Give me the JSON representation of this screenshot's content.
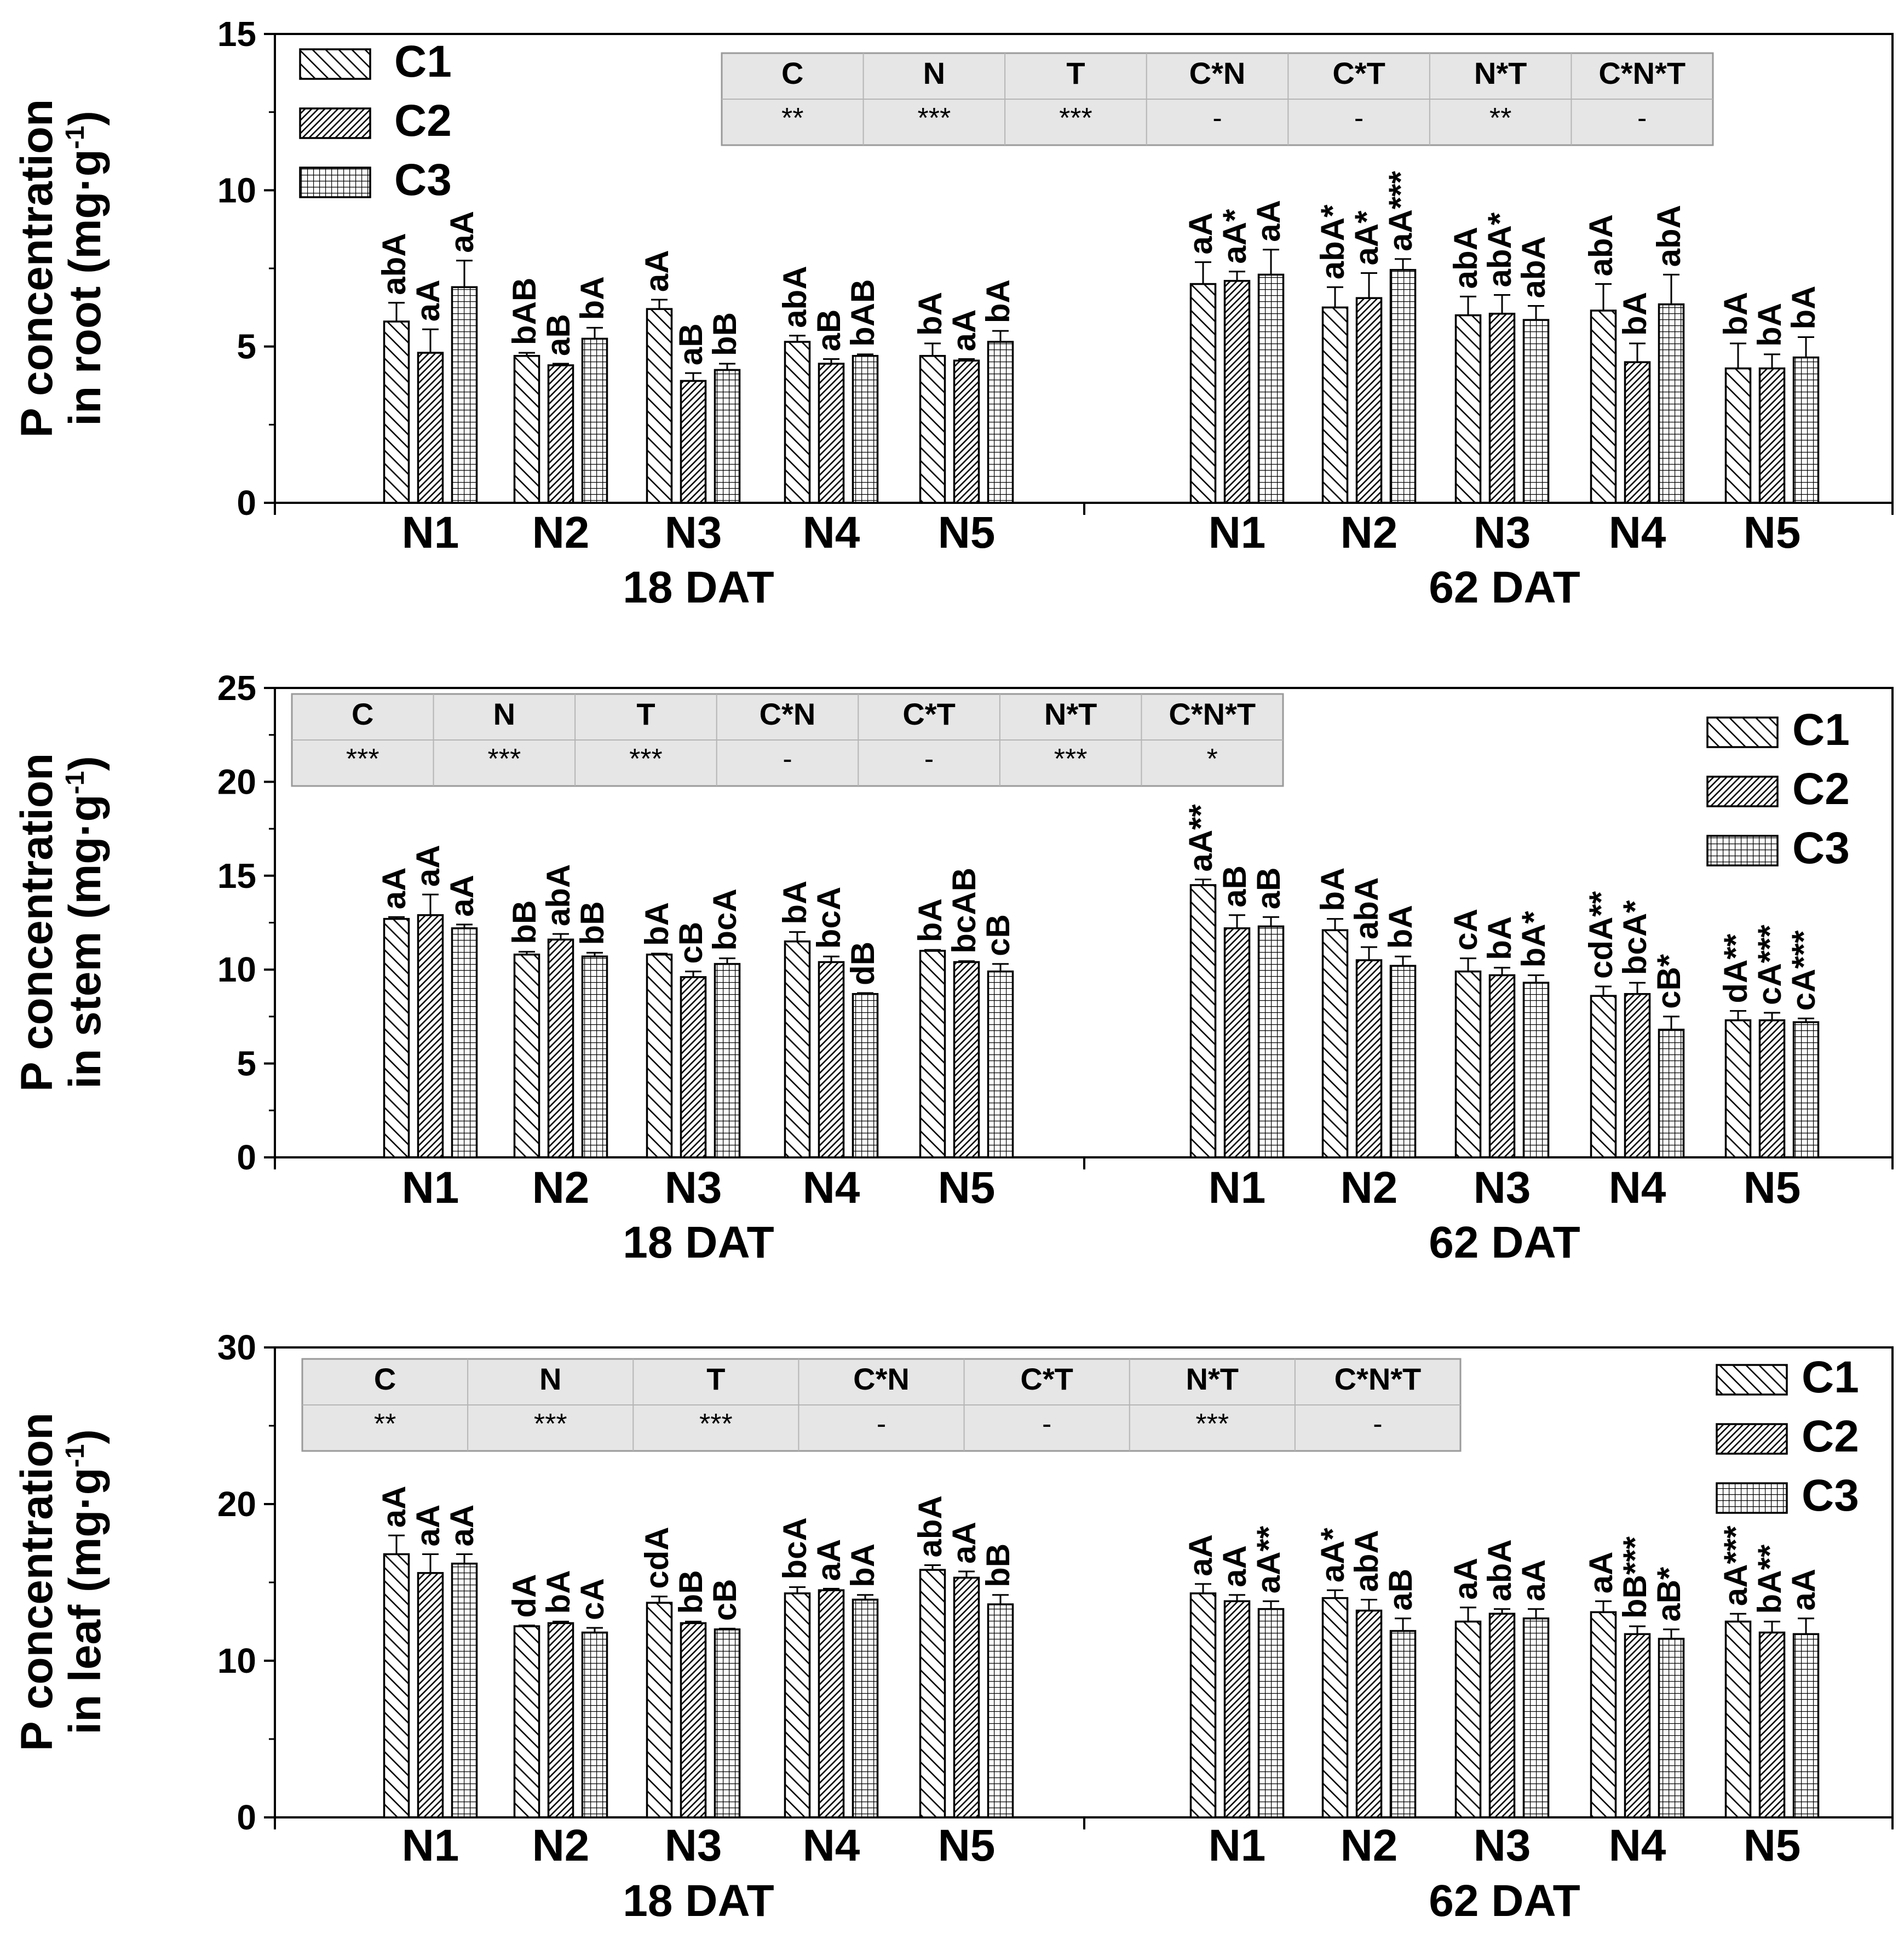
{
  "legend_labels": [
    "C1",
    "C2",
    "C3"
  ],
  "chart_data": [
    {
      "type": "bar",
      "panel": "root",
      "ylabel_line1": "P concentration",
      "ylabel_line2_prefix": "in root (mg",
      "ylabel_line2_unit": "g",
      "ylabel_line2_exp": "-1",
      "ylim": [
        0,
        15
      ],
      "yticks": [
        0,
        5,
        10,
        15
      ],
      "groups": [
        {
          "label": "18 DAT",
          "categories": [
            "N1",
            "N2",
            "N3",
            "N4",
            "N5"
          ]
        },
        {
          "label": "62 DAT",
          "categories": [
            "N1",
            "N2",
            "N3",
            "N4",
            "N5"
          ]
        }
      ],
      "series": [
        {
          "name": "C1",
          "values": [
            5.8,
            4.7,
            6.2,
            5.15,
            4.7,
            7.0,
            6.25,
            6.0,
            6.15,
            4.3
          ],
          "errors": [
            0.6,
            0.1,
            0.3,
            0.2,
            0.4,
            0.7,
            0.65,
            0.6,
            0.85,
            0.8
          ],
          "labels": [
            "abA",
            "bAB",
            "aA",
            "abA",
            "bA",
            "aA",
            "abA*",
            "abA",
            "abA",
            "bA"
          ]
        },
        {
          "name": "C2",
          "values": [
            4.8,
            4.4,
            3.9,
            4.45,
            4.55,
            7.1,
            6.55,
            6.05,
            4.5,
            4.3
          ],
          "errors": [
            0.75,
            0.05,
            0.25,
            0.15,
            0.05,
            0.3,
            0.8,
            0.6,
            0.6,
            0.45
          ],
          "labels": [
            "aA",
            "aB",
            "aB",
            "aB",
            "aA",
            "aA*",
            "aA*",
            "abA*",
            "bA",
            "bA"
          ]
        },
        {
          "name": "C3",
          "values": [
            6.9,
            5.25,
            4.25,
            4.7,
            5.15,
            7.3,
            7.45,
            5.85,
            6.35,
            4.65
          ],
          "errors": [
            0.85,
            0.35,
            0.2,
            0.05,
            0.35,
            0.8,
            0.35,
            0.45,
            0.95,
            0.65
          ],
          "labels": [
            "aA",
            "bA",
            "bB",
            "bAB",
            "bA",
            "aA",
            "aA***",
            "abA",
            "abA",
            "bA"
          ]
        }
      ],
      "anova": {
        "headers": [
          "C",
          "N",
          "T",
          "C*N",
          "C*T",
          "N*T",
          "C*N*T"
        ],
        "values": [
          "**",
          "***",
          "***",
          "-",
          "-",
          "**",
          "-"
        ]
      },
      "legend_position": "top-left"
    },
    {
      "type": "bar",
      "panel": "stem",
      "ylabel_line1": "P concentration",
      "ylabel_line2_prefix": "in stem (mg",
      "ylabel_line2_unit": "g",
      "ylabel_line2_exp": "-1",
      "ylim": [
        0,
        25
      ],
      "yticks": [
        0,
        5,
        10,
        15,
        20,
        25
      ],
      "groups": [
        {
          "label": "18 DAT",
          "categories": [
            "N1",
            "N2",
            "N3",
            "N4",
            "N5"
          ]
        },
        {
          "label": "62 DAT",
          "categories": [
            "N1",
            "N2",
            "N3",
            "N4",
            "N5"
          ]
        }
      ],
      "series": [
        {
          "name": "C1",
          "values": [
            12.7,
            10.8,
            10.8,
            11.5,
            11.0,
            14.5,
            12.1,
            9.9,
            8.6,
            7.3
          ],
          "errors": [
            0.1,
            0.15,
            0.05,
            0.5,
            0.05,
            0.3,
            0.6,
            0.7,
            0.5,
            0.5
          ],
          "labels": [
            "aA",
            "bB",
            "bA",
            "bA",
            "bA",
            "aA**",
            "bA",
            "cA",
            "cdA**",
            "dA**"
          ]
        },
        {
          "name": "C2",
          "values": [
            12.9,
            11.6,
            9.6,
            10.4,
            10.4,
            12.2,
            10.5,
            9.7,
            8.7,
            7.3
          ],
          "errors": [
            1.1,
            0.3,
            0.3,
            0.3,
            0.05,
            0.7,
            0.7,
            0.4,
            0.6,
            0.4
          ],
          "labels": [
            "aA",
            "abA",
            "cB",
            "bcA",
            "bcAB",
            "aB",
            "abA",
            "bA",
            "bcA*",
            "cA***"
          ]
        },
        {
          "name": "C3",
          "values": [
            12.2,
            10.7,
            10.3,
            8.7,
            9.9,
            12.3,
            10.2,
            9.3,
            6.8,
            7.2
          ],
          "errors": [
            0.2,
            0.2,
            0.3,
            0.05,
            0.4,
            0.5,
            0.5,
            0.4,
            0.7,
            0.2
          ],
          "labels": [
            "aA",
            "bB",
            "bcA",
            "dB",
            "cB",
            "aB",
            "bA",
            "bA*",
            "cB*",
            "cA***"
          ]
        }
      ],
      "anova": {
        "headers": [
          "C",
          "N",
          "T",
          "C*N",
          "C*T",
          "N*T",
          "C*N*T"
        ],
        "values": [
          "***",
          "***",
          "***",
          "-",
          "-",
          "***",
          "*"
        ]
      },
      "legend_position": "top-right"
    },
    {
      "type": "bar",
      "panel": "leaf",
      "ylabel_line1": "P concentration",
      "ylabel_line2_prefix": "in leaf (mg",
      "ylabel_line2_unit": "g",
      "ylabel_line2_exp": "-1",
      "ylim": [
        0,
        30
      ],
      "yticks": [
        0,
        10,
        20,
        30
      ],
      "groups": [
        {
          "label": "18 DAT",
          "categories": [
            "N1",
            "N2",
            "N3",
            "N4",
            "N5"
          ]
        },
        {
          "label": "62 DAT",
          "categories": [
            "N1",
            "N2",
            "N3",
            "N4",
            "N5"
          ]
        }
      ],
      "series": [
        {
          "name": "C1",
          "values": [
            16.8,
            12.2,
            13.7,
            14.3,
            15.8,
            14.3,
            14.0,
            12.5,
            13.1,
            12.5
          ],
          "errors": [
            1.2,
            0.05,
            0.4,
            0.4,
            0.3,
            0.6,
            0.5,
            0.9,
            0.7,
            0.5
          ],
          "labels": [
            "aA",
            "dA",
            "cdA",
            "bcA",
            "abA",
            "aA",
            "aA*",
            "aA",
            "aA",
            "aA***"
          ]
        },
        {
          "name": "C2",
          "values": [
            15.6,
            12.4,
            12.4,
            14.5,
            15.3,
            13.8,
            13.2,
            13.0,
            11.7,
            11.8
          ],
          "errors": [
            1.2,
            0.1,
            0.1,
            0.1,
            0.4,
            0.4,
            0.7,
            0.3,
            0.5,
            0.7
          ],
          "labels": [
            "aA",
            "bA",
            "bB",
            "aA",
            "aA",
            "aA",
            "abA",
            "abA",
            "bB***",
            "bA**"
          ]
        },
        {
          "name": "C3",
          "values": [
            16.2,
            11.8,
            12.0,
            13.9,
            13.6,
            13.3,
            11.9,
            12.7,
            11.4,
            11.7
          ],
          "errors": [
            0.6,
            0.3,
            0.05,
            0.3,
            0.6,
            0.5,
            0.8,
            0.6,
            0.6,
            1.0
          ],
          "labels": [
            "aA",
            "cA",
            "cB",
            "bA",
            "bB",
            "aA**",
            "aB",
            "aA",
            "aB*",
            "aA"
          ]
        }
      ],
      "anova": {
        "headers": [
          "C",
          "N",
          "T",
          "C*N",
          "C*T",
          "N*T",
          "C*N*T"
        ],
        "values": [
          "**",
          "***",
          "***",
          "-",
          "-",
          "***",
          "-"
        ]
      },
      "legend_position": "top-right"
    }
  ]
}
